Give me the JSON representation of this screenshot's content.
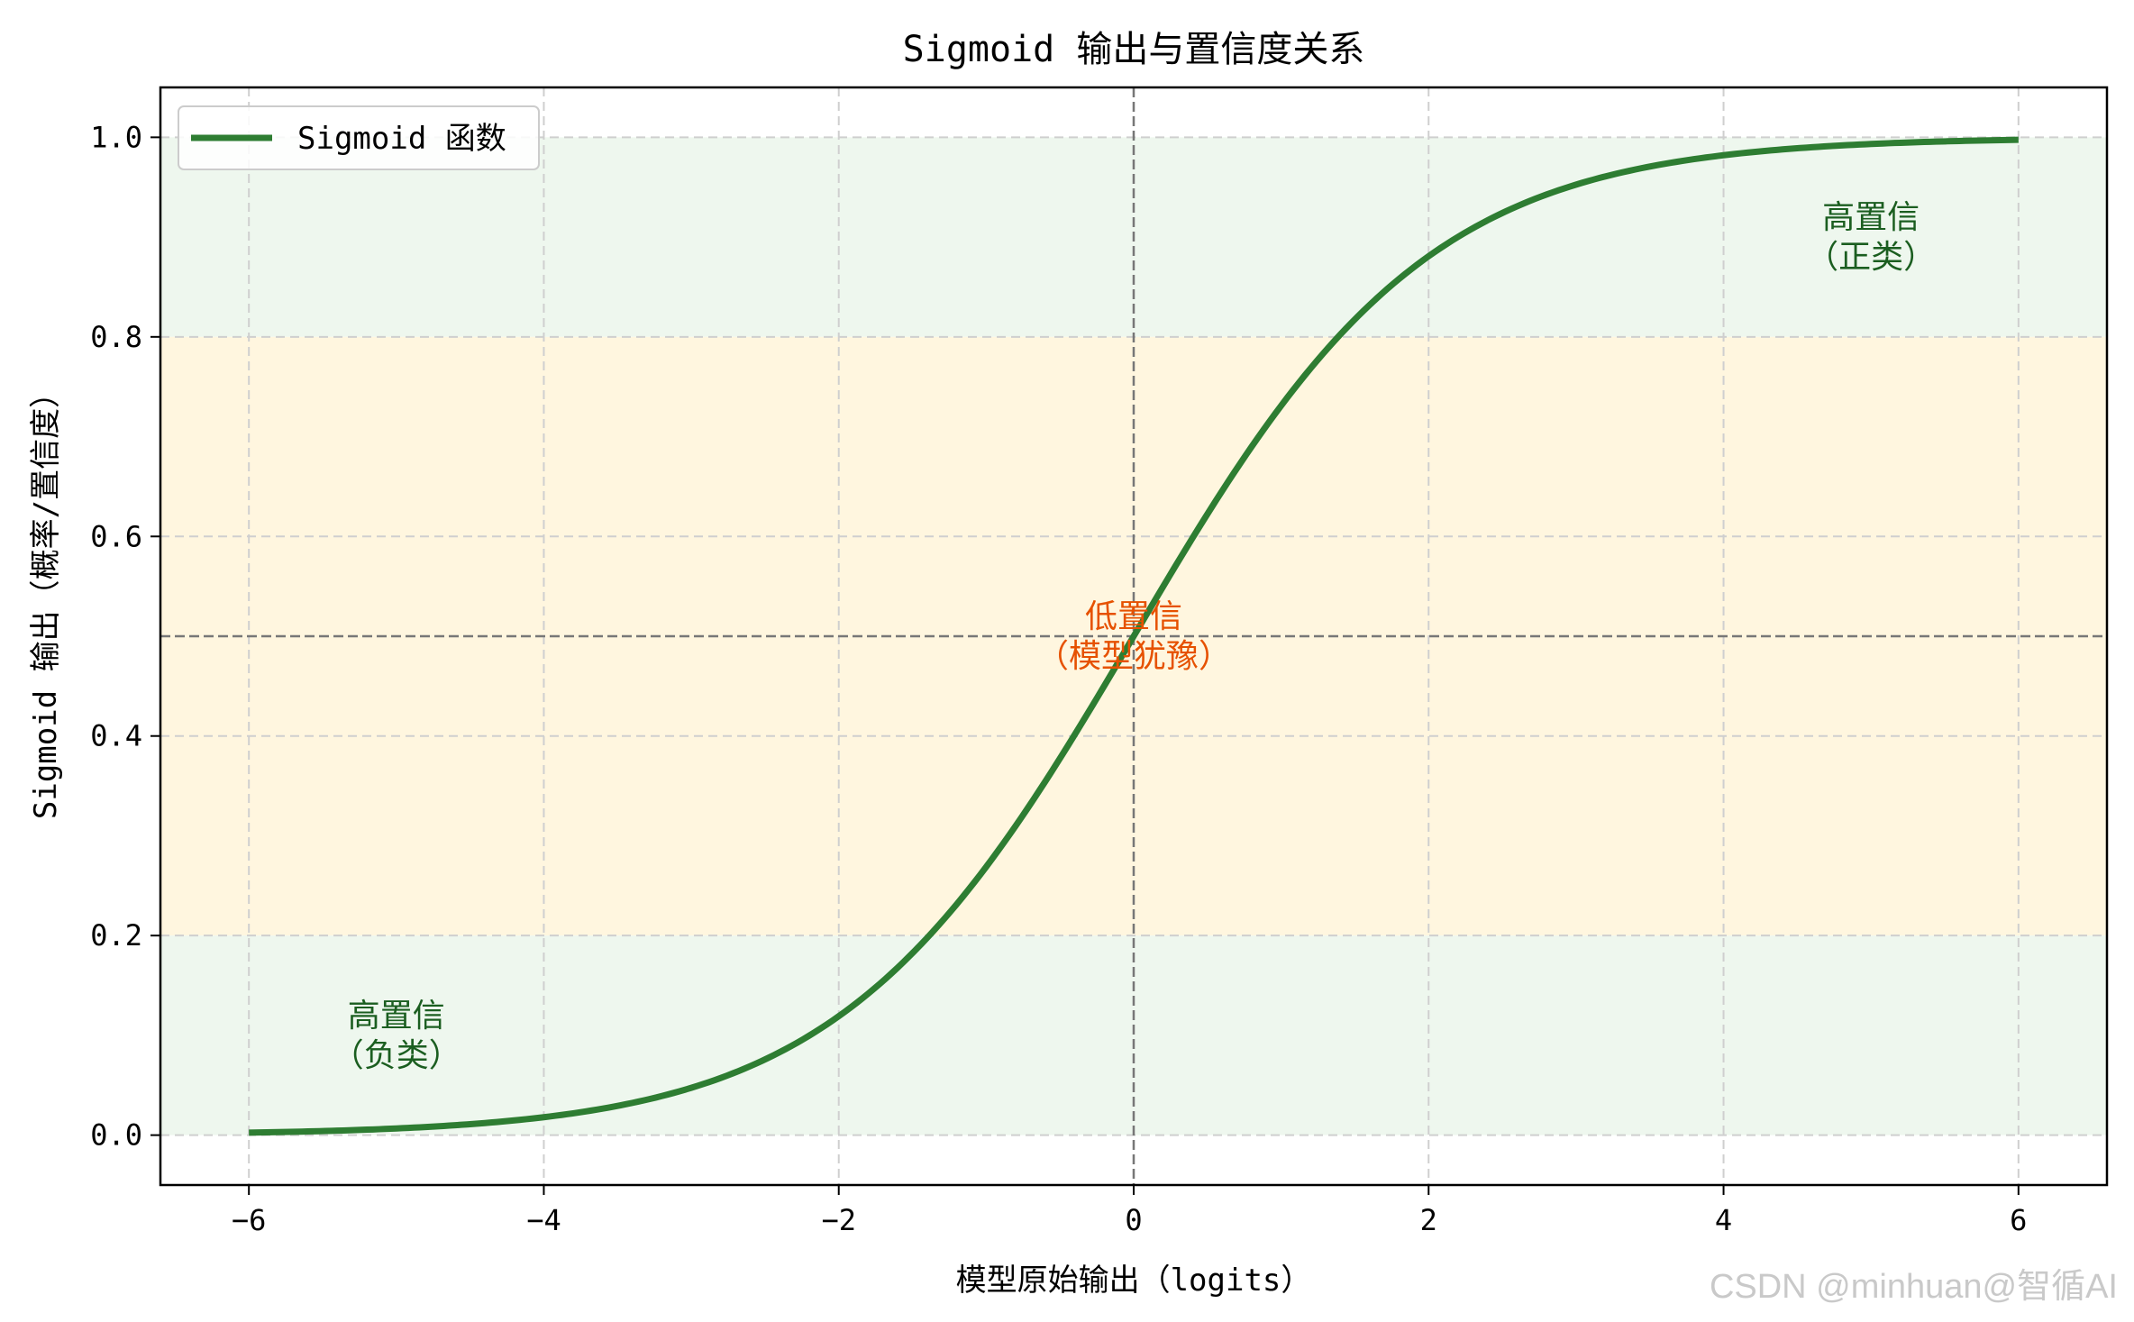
{
  "chart_data": {
    "type": "line",
    "title": "Sigmoid 输出与置信度关系",
    "xlabel": "模型原始输出（logits）",
    "ylabel": "Sigmoid 输出（概率/置信度）",
    "xlim": [
      -6.6,
      6.6
    ],
    "ylim": [
      -0.05,
      1.05
    ],
    "xticks": [
      -6,
      -4,
      -2,
      0,
      2,
      4,
      6
    ],
    "xtick_labels": [
      "−6",
      "−4",
      "−2",
      "0",
      "2",
      "4",
      "6"
    ],
    "yticks": [
      0.0,
      0.2,
      0.4,
      0.6,
      0.8,
      1.0
    ],
    "ytick_labels": [
      "0.0",
      "0.2",
      "0.4",
      "0.6",
      "0.8",
      "1.0"
    ],
    "grid": true,
    "legend_position": "top-left",
    "series": [
      {
        "name": "Sigmoid 函数",
        "color": "#2e7d32",
        "function": "sigmoid",
        "x_range": [
          -6,
          6
        ],
        "sample_values": {
          "x": [
            -6,
            -4,
            -2,
            0,
            2,
            4,
            6
          ],
          "y": [
            0.0025,
            0.018,
            0.119,
            0.5,
            0.881,
            0.982,
            0.9975
          ]
        }
      }
    ],
    "bands": [
      {
        "y": [
          0.8,
          1.0
        ],
        "color": "#eef7ee"
      },
      {
        "y": [
          0.2,
          0.8
        ],
        "color": "#fff6df"
      },
      {
        "y": [
          0.0,
          0.2
        ],
        "color": "#eef7ee"
      }
    ],
    "reference_lines": [
      {
        "axis": "x",
        "value": 0,
        "color": "#777777",
        "style": "dashed"
      },
      {
        "axis": "y",
        "value": 0.5,
        "color": "#777777",
        "style": "dashed"
      }
    ],
    "annotations": [
      {
        "lines": [
          "高置信",
          "（正类）"
        ],
        "x": 5.0,
        "y": 0.9,
        "color": "#1b5e20"
      },
      {
        "lines": [
          "低置信",
          "（模型犹豫）"
        ],
        "x": 0.0,
        "y": 0.5,
        "color": "#e65100"
      },
      {
        "lines": [
          "高置信",
          "（负类）"
        ],
        "x": -5.0,
        "y": 0.1,
        "color": "#1b5e20"
      }
    ]
  },
  "watermark": "CSDN @minhuan@智循AI"
}
